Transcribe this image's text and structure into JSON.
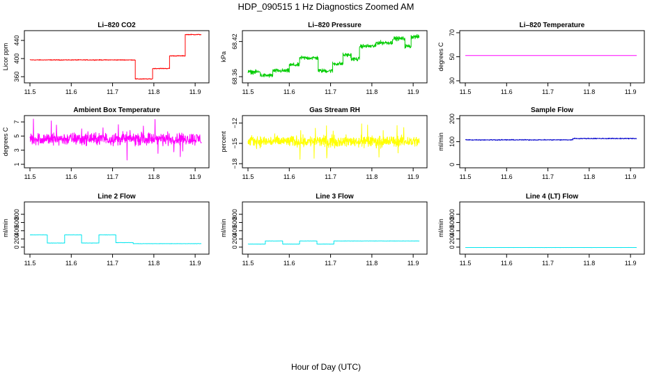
{
  "figure": {
    "title": "HDP_090515  1 Hz Diagnostics Zoomed AM",
    "xlabel": "Hour of Day (UTC)"
  },
  "chart_data": [
    {
      "type": "line",
      "title": "Li–820 CO2",
      "ylabel": "Licor ppm",
      "color": "#ff0000",
      "xlim": [
        11.5,
        11.92
      ],
      "xticks": [
        11.5,
        11.6,
        11.7,
        11.8,
        11.9
      ],
      "xtick_labels": [
        "11.5",
        "11.6",
        "11.7",
        "11.8",
        "11.9"
      ],
      "ylim": [
        351,
        457
      ],
      "yticks": [
        360,
        400,
        440
      ],
      "ytick_labels": [
        "360",
        "400",
        "440"
      ],
      "noise": 1.2,
      "spikes": 0,
      "segments": [
        {
          "x": [
            11.5,
            11.755
          ],
          "y": 397
        },
        {
          "x": [
            11.755,
            11.797
          ],
          "y": 355
        },
        {
          "x": [
            11.797,
            11.838
          ],
          "y": 378
        },
        {
          "x": [
            11.838,
            11.876
          ],
          "y": 406
        },
        {
          "x": [
            11.876,
            11.915
          ],
          "y": 453
        }
      ]
    },
    {
      "type": "line",
      "title": "Li–820 Pressure",
      "ylabel": "kPa",
      "color": "#00cc00",
      "xlim": [
        11.5,
        11.92
      ],
      "xticks": [
        11.5,
        11.6,
        11.7,
        11.8,
        11.9
      ],
      "xtick_labels": [
        "11.5",
        "11.6",
        "11.7",
        "11.8",
        "11.9"
      ],
      "ylim": [
        68.353,
        68.435
      ],
      "yticks": [
        68.36,
        68.42
      ],
      "ytick_labels": [
        "68.36",
        "68.42"
      ],
      "noise": 0.005,
      "spikes": 0,
      "segments": [
        {
          "x": [
            11.5,
            11.53
          ],
          "y": 68.368
        },
        {
          "x": [
            11.53,
            11.56
          ],
          "y": 68.362
        },
        {
          "x": [
            11.56,
            11.6
          ],
          "y": 68.37
        },
        {
          "x": [
            11.6,
            11.625
          ],
          "y": 68.38
        },
        {
          "x": [
            11.625,
            11.67
          ],
          "y": 68.392
        },
        {
          "x": [
            11.67,
            11.705
          ],
          "y": 68.37
        },
        {
          "x": [
            11.705,
            11.73
          ],
          "y": 68.382
        },
        {
          "x": [
            11.73,
            11.75
          ],
          "y": 68.397
        },
        {
          "x": [
            11.75,
            11.77
          ],
          "y": 68.39
        },
        {
          "x": [
            11.77,
            11.81
          ],
          "y": 68.412
        },
        {
          "x": [
            11.81,
            11.85
          ],
          "y": 68.418
        },
        {
          "x": [
            11.85,
            11.88
          ],
          "y": 68.425
        },
        {
          "x": [
            11.88,
            11.895
          ],
          "y": 68.412
        },
        {
          "x": [
            11.895,
            11.915
          ],
          "y": 68.428
        }
      ]
    },
    {
      "type": "line",
      "title": "Li–820 Temperature",
      "ylabel": "degrees C",
      "color": "#ff00ff",
      "xlim": [
        11.5,
        11.92
      ],
      "xticks": [
        11.5,
        11.6,
        11.7,
        11.8,
        11.9
      ],
      "xtick_labels": [
        "11.5",
        "11.6",
        "11.7",
        "11.8",
        "11.9"
      ],
      "ylim": [
        30,
        70
      ],
      "yticks": [
        30,
        50,
        70
      ],
      "ytick_labels": [
        "30",
        "50",
        "70"
      ],
      "noise": 0,
      "spikes": 0,
      "segments": [
        {
          "x": [
            11.5,
            11.915
          ],
          "y": 51
        }
      ]
    },
    {
      "type": "line",
      "title": "Ambient Box Temperature",
      "ylabel": "degrees C",
      "color": "#ff00ff",
      "xlim": [
        11.5,
        11.92
      ],
      "xticks": [
        11.5,
        11.6,
        11.7,
        11.8,
        11.9
      ],
      "xtick_labels": [
        "11.5",
        "11.6",
        "11.7",
        "11.8",
        "11.9"
      ],
      "ylim": [
        0.8,
        7.6
      ],
      "yticks": [
        1,
        3,
        5,
        7
      ],
      "ytick_labels": [
        "1",
        "3",
        "5",
        "7"
      ],
      "noise": 1.3,
      "spikes": 2.6,
      "segments": [
        {
          "x": [
            11.5,
            11.915
          ],
          "y": 4.6
        }
      ]
    },
    {
      "type": "line",
      "title": "Gas Stream RH",
      "ylabel": "percent",
      "color": "#ffff00",
      "xlim": [
        11.5,
        11.92
      ],
      "xticks": [
        11.5,
        11.6,
        11.7,
        11.8,
        11.9
      ],
      "xtick_labels": [
        "11.5",
        "11.6",
        "11.7",
        "11.8",
        "11.9"
      ],
      "ylim": [
        -18.3,
        -11.2
      ],
      "yticks": [
        -18,
        -15,
        -12
      ],
      "ytick_labels": [
        "−18",
        "−15",
        "−12"
      ],
      "noise": 1.2,
      "spikes": 2.3,
      "segments": [
        {
          "x": [
            11.5,
            11.915
          ],
          "y": -14.7
        }
      ]
    },
    {
      "type": "line",
      "title": "Sample Flow",
      "ylabel": "ml/min",
      "color": "#0000cc",
      "xlim": [
        11.5,
        11.92
      ],
      "xticks": [
        11.5,
        11.6,
        11.7,
        11.8,
        11.9
      ],
      "xtick_labels": [
        "11.5",
        "11.6",
        "11.7",
        "11.8",
        "11.9"
      ],
      "ylim": [
        -5,
        205
      ],
      "yticks": [
        0,
        100,
        200
      ],
      "ytick_labels": [
        "0",
        "100",
        "200"
      ],
      "noise": 3,
      "spikes": 0,
      "segments": [
        {
          "x": [
            11.5,
            11.76
          ],
          "y": 108
        },
        {
          "x": [
            11.76,
            11.915
          ],
          "y": 114
        }
      ]
    },
    {
      "type": "line",
      "title": "Line 2 Flow",
      "ylabel": "ml/min",
      "color": "#00e5ee",
      "xlim": [
        11.5,
        11.92
      ],
      "xticks": [
        11.5,
        11.6,
        11.7,
        11.8,
        11.9
      ],
      "xtick_labels": [
        "11.5",
        "11.6",
        "11.7",
        "11.8",
        "11.9"
      ],
      "ylim": [
        -120,
        1050
      ],
      "yticks": [
        0,
        200,
        400,
        600,
        800
      ],
      "ytick_labels": [
        "0",
        "200",
        "400",
        "600",
        "800"
      ],
      "noise": 5,
      "spikes": 0,
      "segments": [
        {
          "x": [
            11.5,
            11.542
          ],
          "y": 300
        },
        {
          "x": [
            11.542,
            11.584
          ],
          "y": 100
        },
        {
          "x": [
            11.584,
            11.625
          ],
          "y": 300
        },
        {
          "x": [
            11.625,
            11.667
          ],
          "y": 100
        },
        {
          "x": [
            11.667,
            11.708
          ],
          "y": 300
        },
        {
          "x": [
            11.708,
            11.75
          ],
          "y": 110
        },
        {
          "x": [
            11.75,
            11.915
          ],
          "y": 85
        }
      ]
    },
    {
      "type": "line",
      "title": "Line 3 Flow",
      "ylabel": "ml/min",
      "color": "#00e5ee",
      "xlim": [
        11.5,
        11.92
      ],
      "xticks": [
        11.5,
        11.6,
        11.7,
        11.8,
        11.9
      ],
      "xtick_labels": [
        "11.5",
        "11.6",
        "11.7",
        "11.8",
        "11.9"
      ],
      "ylim": [
        -120,
        1050
      ],
      "yticks": [
        0,
        200,
        400,
        600,
        800
      ],
      "ytick_labels": [
        "0",
        "200",
        "400",
        "600",
        "800"
      ],
      "noise": 4,
      "spikes": 0,
      "segments": [
        {
          "x": [
            11.5,
            11.542
          ],
          "y": 75
        },
        {
          "x": [
            11.542,
            11.584
          ],
          "y": 150
        },
        {
          "x": [
            11.584,
            11.625
          ],
          "y": 75
        },
        {
          "x": [
            11.625,
            11.667
          ],
          "y": 150
        },
        {
          "x": [
            11.667,
            11.708
          ],
          "y": 75
        },
        {
          "x": [
            11.708,
            11.915
          ],
          "y": 150
        }
      ]
    },
    {
      "type": "line",
      "title": "Line 4 (LT) Flow",
      "ylabel": "ml/min",
      "color": "#00e5ee",
      "xlim": [
        11.5,
        11.92
      ],
      "xticks": [
        11.5,
        11.6,
        11.7,
        11.8,
        11.9
      ],
      "xtick_labels": [
        "11.5",
        "11.6",
        "11.7",
        "11.8",
        "11.9"
      ],
      "ylim": [
        -120,
        1050
      ],
      "yticks": [
        0,
        200,
        400,
        600,
        800
      ],
      "ytick_labels": [
        "0",
        "200",
        "400",
        "600",
        "800"
      ],
      "noise": 2,
      "spikes": 0,
      "segments": [
        {
          "x": [
            11.5,
            11.915
          ],
          "y": -10
        }
      ]
    }
  ]
}
